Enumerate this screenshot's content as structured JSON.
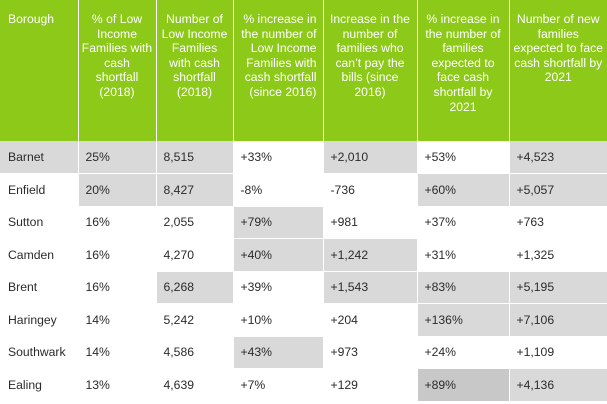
{
  "headers": [
    "Borough",
    "% of Low Income Families with cash shortfall (2018)",
    "Number of Low Income Families with cash shortfall (2018)",
    "% increase in the number of Low Income Families with cash shortfall (since 2016)",
    "Increase in the number of families who can’t pay the bills (since 2016)",
    "% increase in the number of families expected to face cash shortfall by 2021",
    "Number of new families expected to face cash shortfall by 2021"
  ],
  "rows": [
    [
      "Barnet",
      "25%",
      "8,515",
      "+33%",
      "+2,010",
      "+53%",
      "+4,523"
    ],
    [
      "Enfield",
      "20%",
      "8,427",
      "-8%",
      "-736",
      "+60%",
      "+5,057"
    ],
    [
      "Sutton",
      "16%",
      "2,055",
      "+79%",
      "+981",
      "+37%",
      "+763"
    ],
    [
      "Camden",
      "16%",
      "4,270",
      "+40%",
      "+1,242",
      "+31%",
      "+1,325"
    ],
    [
      "Brent",
      "16%",
      "6,268",
      "+39%",
      "+1,543",
      "+83%",
      "+5,195"
    ],
    [
      "Haringey",
      "14%",
      "5,242",
      "+10%",
      "+204",
      "+136%",
      "+7,106"
    ],
    [
      "Southwark",
      "14%",
      "4,586",
      "+43%",
      "+973",
      "+24%",
      "+1,109"
    ],
    [
      "Ealing",
      "13%",
      "4,639",
      "+7%",
      "+129",
      "+89%",
      "+4,136"
    ]
  ],
  "colors": {
    "header_bg": "#8cc919",
    "header_text": "#ffffff",
    "highlight": "#d9d9d9",
    "highlight_dark": "#c8c8c8"
  }
}
